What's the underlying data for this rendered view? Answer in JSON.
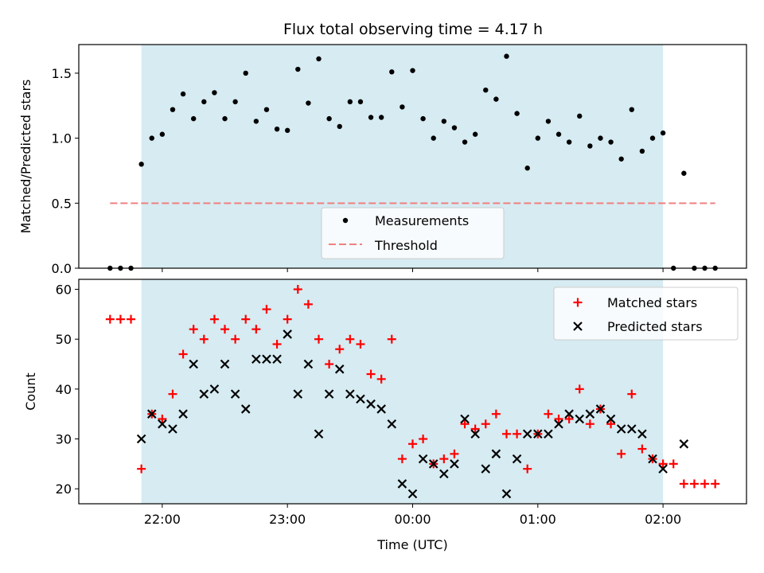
{
  "chart_data": [
    {
      "type": "scatter",
      "title": "Flux total observing time = 4.17 h",
      "ylabel": "Matched/Predicted stars",
      "ylim": [
        0,
        1.72
      ],
      "yticks": [
        "0.0",
        "0.5",
        "1.0",
        "1.5"
      ],
      "shaded_span": {
        "start": "21:50",
        "end": "02:00",
        "color": "#add8e6"
      },
      "threshold": {
        "name": "Threshold",
        "value": 0.5,
        "color": "#f08080"
      },
      "legend": {
        "placement": "lower-center",
        "entries": [
          "Measurements",
          "Threshold"
        ]
      },
      "series": [
        {
          "name": "Measurements",
          "color": "#000000",
          "x": [
            "21:35",
            "21:40",
            "21:45",
            "21:50",
            "21:55",
            "22:00",
            "22:05",
            "22:10",
            "22:15",
            "22:20",
            "22:25",
            "22:30",
            "22:35",
            "22:40",
            "22:45",
            "22:50",
            "22:55",
            "23:00",
            "23:05",
            "23:10",
            "23:15",
            "23:20",
            "23:25",
            "23:30",
            "23:35",
            "23:40",
            "23:45",
            "23:50",
            "23:55",
            "00:00",
            "00:05",
            "00:10",
            "00:15",
            "00:20",
            "00:25",
            "00:30",
            "00:35",
            "00:40",
            "00:45",
            "00:50",
            "00:55",
            "01:00",
            "01:05",
            "01:10",
            "01:15",
            "01:20",
            "01:25",
            "01:30",
            "01:35",
            "01:40",
            "01:45",
            "01:50",
            "01:55",
            "02:00",
            "02:05",
            "02:10",
            "02:15",
            "02:20",
            "02:25"
          ],
          "y": [
            0.0,
            0.0,
            0.0,
            0.8,
            1.0,
            1.03,
            1.22,
            1.34,
            1.15,
            1.28,
            1.35,
            1.15,
            1.28,
            1.5,
            1.13,
            1.22,
            1.07,
            1.06,
            1.53,
            1.27,
            1.61,
            1.15,
            1.09,
            1.28,
            1.28,
            1.16,
            1.16,
            1.51,
            1.24,
            1.52,
            1.15,
            1.0,
            1.13,
            1.08,
            0.97,
            1.03,
            1.37,
            1.3,
            1.63,
            1.19,
            0.77,
            1.0,
            1.13,
            1.03,
            0.97,
            1.17,
            0.94,
            1.0,
            0.97,
            0.84,
            1.22,
            0.9,
            1.0,
            1.04,
            0.0,
            0.73,
            0.0,
            0.0,
            0.0
          ]
        }
      ]
    },
    {
      "type": "scatter",
      "xlabel": "Time (UTC)",
      "ylabel": "Count",
      "ylim": [
        17,
        62
      ],
      "yticks": [
        "20",
        "30",
        "40",
        "50",
        "60"
      ],
      "xticks": [
        "22:00",
        "23:00",
        "00:00",
        "01:00",
        "02:00"
      ],
      "shaded_span": {
        "start": "21:50",
        "end": "02:00",
        "color": "#add8e6"
      },
      "legend": {
        "placement": "top-right",
        "entries": [
          "Matched stars",
          "Predicted stars"
        ]
      },
      "series": [
        {
          "name": "Matched stars",
          "color": "#ff0000",
          "marker": "plus",
          "x": [
            "21:35",
            "21:40",
            "21:45",
            "21:50",
            "21:55",
            "22:00",
            "22:05",
            "22:10",
            "22:15",
            "22:20",
            "22:25",
            "22:30",
            "22:35",
            "22:40",
            "22:45",
            "22:50",
            "22:55",
            "23:00",
            "23:05",
            "23:10",
            "23:15",
            "23:20",
            "23:25",
            "23:30",
            "23:35",
            "23:40",
            "23:45",
            "23:50",
            "23:55",
            "00:00",
            "00:05",
            "00:10",
            "00:15",
            "00:20",
            "00:25",
            "00:30",
            "00:35",
            "00:40",
            "00:45",
            "00:50",
            "00:55",
            "01:00",
            "01:05",
            "01:10",
            "01:15",
            "01:20",
            "01:25",
            "01:30",
            "01:35",
            "01:40",
            "01:45",
            "01:50",
            "01:55",
            "02:00",
            "02:05",
            "02:10",
            "02:15",
            "02:20",
            "02:25"
          ],
          "y": [
            54,
            54,
            54,
            24,
            35,
            34,
            39,
            47,
            52,
            50,
            54,
            52,
            50,
            54,
            52,
            56,
            49,
            54,
            60,
            57,
            50,
            45,
            48,
            50,
            49,
            43,
            42,
            50,
            26,
            29,
            30,
            25,
            26,
            27,
            33,
            32,
            33,
            35,
            31,
            31,
            24,
            31,
            35,
            34,
            34,
            40,
            33,
            36,
            33,
            27,
            39,
            28,
            26,
            25,
            25,
            21,
            21,
            21,
            21
          ]
        },
        {
          "name": "Predicted stars",
          "color": "#000000",
          "marker": "x",
          "x": [
            "21:50",
            "21:55",
            "22:00",
            "22:05",
            "22:10",
            "22:15",
            "22:20",
            "22:25",
            "22:30",
            "22:35",
            "22:40",
            "22:45",
            "22:50",
            "22:55",
            "23:00",
            "23:05",
            "23:10",
            "23:15",
            "23:20",
            "23:25",
            "23:30",
            "23:35",
            "23:40",
            "23:45",
            "23:50",
            "23:55",
            "00:00",
            "00:05",
            "00:10",
            "00:15",
            "00:20",
            "00:25",
            "00:30",
            "00:35",
            "00:40",
            "00:45",
            "00:50",
            "00:55",
            "01:00",
            "01:05",
            "01:10",
            "01:15",
            "01:20",
            "01:25",
            "01:30",
            "01:35",
            "01:40",
            "01:45",
            "01:50",
            "01:55",
            "02:00",
            "02:10"
          ],
          "y": [
            30,
            35,
            33,
            32,
            35,
            45,
            39,
            40,
            45,
            39,
            36,
            46,
            46,
            46,
            51,
            39,
            45,
            31,
            39,
            44,
            39,
            38,
            37,
            36,
            33,
            21,
            19,
            26,
            25,
            23,
            25,
            34,
            31,
            24,
            27,
            19,
            26,
            31,
            31,
            31,
            33,
            35,
            34,
            35,
            36,
            34,
            32,
            32,
            31,
            26,
            24,
            29
          ]
        }
      ]
    }
  ]
}
